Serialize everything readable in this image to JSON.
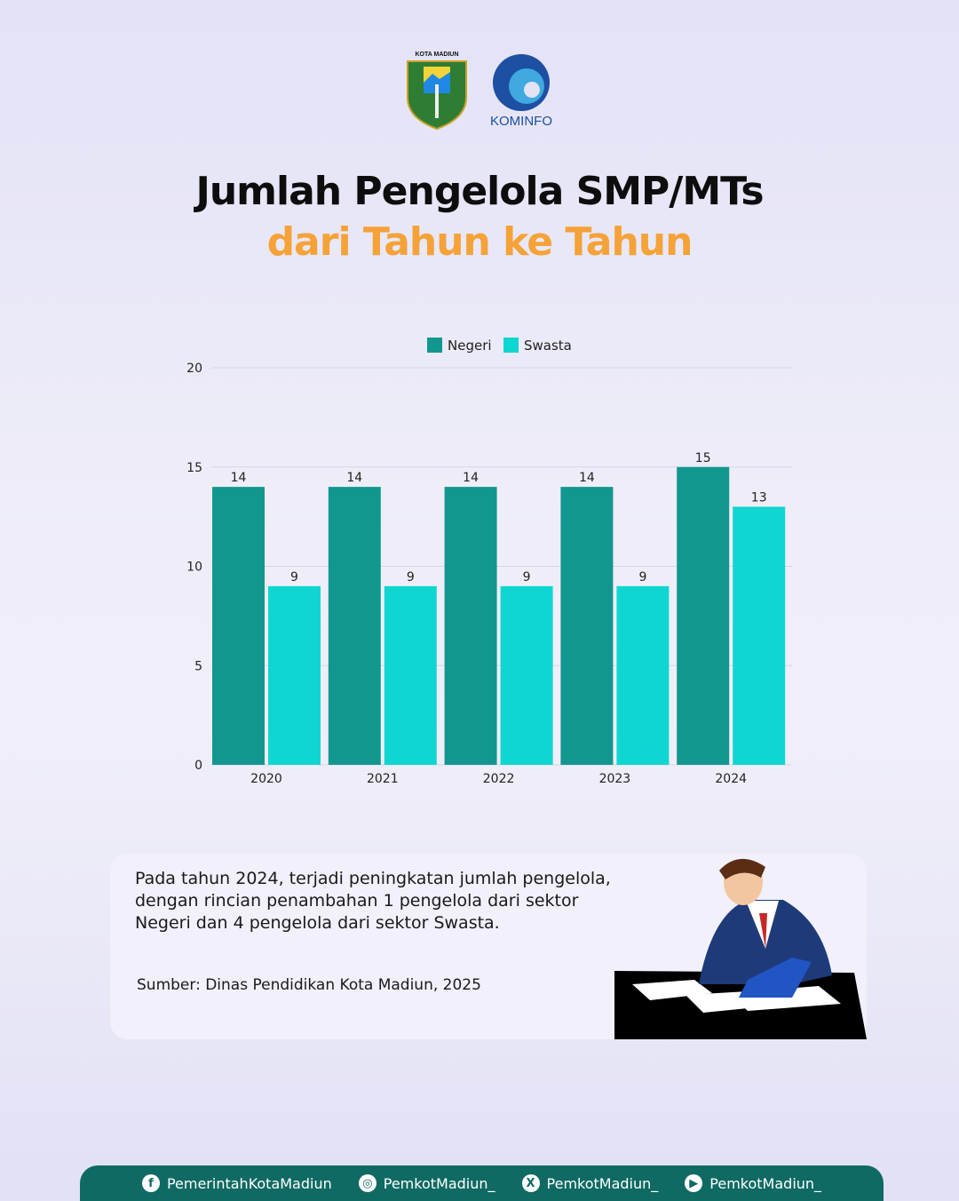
{
  "logos": {
    "left_text": "KOTA MADIUN",
    "right_text": "KOMINFO"
  },
  "title": {
    "line1": "Jumlah Pengelola SMP/MTs",
    "line2": "dari Tahun ke Tahun"
  },
  "chart_data": {
    "type": "bar",
    "categories": [
      "2020",
      "2021",
      "2022",
      "2023",
      "2024"
    ],
    "series": [
      {
        "name": "Negeri",
        "values": [
          14,
          14,
          14,
          14,
          15
        ],
        "color": "#12978f"
      },
      {
        "name": "Swasta",
        "values": [
          9,
          9,
          9,
          9,
          13
        ],
        "color": "#10d6d2"
      }
    ],
    "ylim": [
      0,
      20
    ],
    "yticks": [
      0,
      5,
      10,
      15,
      20
    ],
    "grid": true,
    "legend": "top-center",
    "data_labels": true
  },
  "description": "Pada tahun 2024, terjadi peningkatan jumlah pengelola, dengan rincian penambahan 1 pengelola dari sektor Negeri dan 4 pengelola dari sektor Swasta.",
  "source": "Sumber: Dinas Pendidikan Kota Madiun, 2025",
  "footer": [
    {
      "icon": "facebook-icon",
      "label": "PemerintahKotaMadiun"
    },
    {
      "icon": "instagram-icon",
      "label": "PemkotMadiun_"
    },
    {
      "icon": "x-icon",
      "label": "PemkotMadiun_"
    },
    {
      "icon": "youtube-icon",
      "label": "PemkotMadiun_"
    }
  ]
}
